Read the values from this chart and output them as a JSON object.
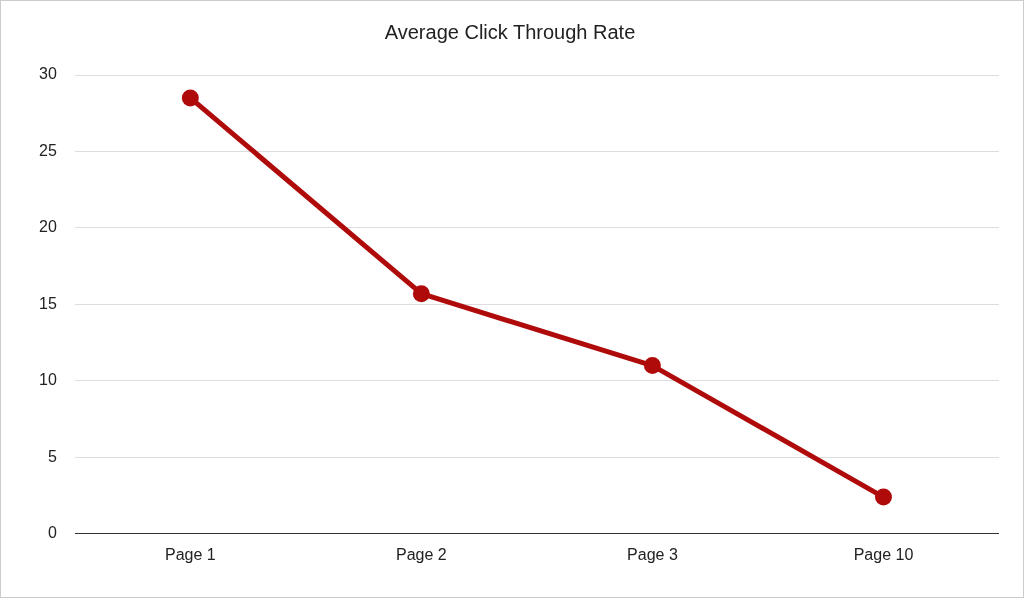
{
  "chart_data": {
    "type": "line",
    "title": "Average Click Through Rate",
    "categories": [
      "Page 1",
      "Page 2",
      "Page 3",
      "Page 10"
    ],
    "series": [
      {
        "color": "#b00b0b",
        "values": [
          28.5,
          15.7,
          11,
          2.4
        ]
      }
    ],
    "ylim": [
      0,
      30
    ],
    "yticks": [
      0,
      5,
      10,
      15,
      20,
      25,
      30
    ],
    "grid": "y",
    "legend": false,
    "marker": "circle",
    "line_style": "solid"
  }
}
